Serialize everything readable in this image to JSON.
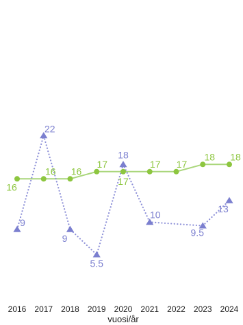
{
  "chart_data": {
    "type": "line",
    "title": "",
    "xlabel": "vuosi/år",
    "ylabel": "",
    "categories": [
      "2016",
      "2017",
      "2018",
      "2019",
      "2020",
      "2021",
      "2022",
      "2023",
      "2024"
    ],
    "ylim": [
      0,
      30
    ],
    "grid": false,
    "legend": "none",
    "series": [
      {
        "style": "solid",
        "marker": "circle",
        "color": "#8dc63f",
        "line_color": "#a9d67a",
        "values": [
          16,
          16,
          16,
          17,
          17,
          17,
          17,
          18,
          18
        ],
        "labels": [
          "16",
          "16",
          "16",
          "17",
          "17",
          "17",
          "17",
          "18",
          "18"
        ]
      },
      {
        "style": "dotted",
        "marker": "triangle",
        "color": "#7b7fcf",
        "line_color": "#8e91d8",
        "values": [
          9,
          22,
          9,
          5.5,
          18,
          10,
          null,
          9.5,
          13
        ],
        "labels": [
          "9",
          "22",
          "9",
          "5.5",
          "18",
          "10",
          "",
          "9.5",
          "13"
        ]
      }
    ]
  }
}
